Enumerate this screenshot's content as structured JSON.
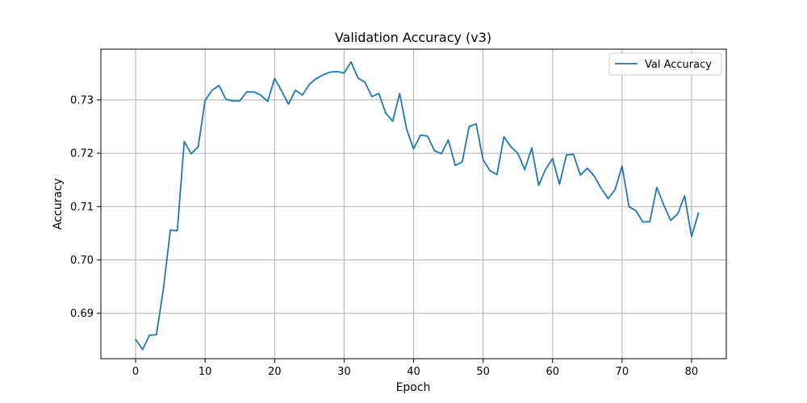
{
  "chart_data": {
    "type": "line",
    "title": "Validation Accuracy (v3)",
    "xlabel": "Epoch",
    "ylabel": "Accuracy",
    "xlim": [
      -5,
      85
    ],
    "ylim": [
      0.6815,
      0.7395
    ],
    "xticks": [
      0,
      10,
      20,
      30,
      40,
      50,
      60,
      70,
      80
    ],
    "xtick_labels": [
      "0",
      "10",
      "20",
      "30",
      "40",
      "50",
      "60",
      "70",
      "80"
    ],
    "yticks": [
      0.69,
      0.7,
      0.71,
      0.72,
      0.73
    ],
    "ytick_labels": [
      "0.69",
      "0.70",
      "0.71",
      "0.72",
      "0.73"
    ],
    "grid": true,
    "legend_position": "top-right",
    "series": [
      {
        "name": "Val Accuracy",
        "color": "#1f77b4",
        "x": [
          0,
          1,
          2,
          3,
          4,
          5,
          6,
          7,
          8,
          9,
          10,
          11,
          12,
          13,
          14,
          15,
          16,
          17,
          18,
          19,
          20,
          21,
          22,
          23,
          24,
          25,
          26,
          27,
          28,
          29,
          30,
          31,
          32,
          33,
          34,
          35,
          36,
          37,
          38,
          39,
          40,
          41,
          42,
          43,
          44,
          45,
          46,
          47,
          48,
          49,
          50,
          51,
          52,
          53,
          54,
          55,
          56,
          57,
          58,
          59,
          60,
          61,
          62,
          63,
          64,
          65,
          66,
          67,
          68,
          69,
          70,
          71,
          72,
          73,
          74,
          75,
          76,
          77,
          78,
          79,
          80,
          81
        ],
        "values": [
          0.6851,
          0.6832,
          0.6859,
          0.686,
          0.6946,
          0.7056,
          0.7055,
          0.7222,
          0.7199,
          0.7212,
          0.7299,
          0.7318,
          0.7327,
          0.7301,
          0.7298,
          0.7298,
          0.7315,
          0.7315,
          0.7309,
          0.7297,
          0.734,
          0.7317,
          0.7292,
          0.7318,
          0.7309,
          0.7329,
          0.734,
          0.7347,
          0.7352,
          0.7353,
          0.735,
          0.7371,
          0.7341,
          0.7333,
          0.7306,
          0.7312,
          0.7275,
          0.726,
          0.7312,
          0.7245,
          0.7208,
          0.7234,
          0.7232,
          0.7205,
          0.7199,
          0.7225,
          0.7177,
          0.7184,
          0.725,
          0.7255,
          0.7188,
          0.7167,
          0.716,
          0.7231,
          0.7212,
          0.72,
          0.7169,
          0.721,
          0.714,
          0.717,
          0.719,
          0.7142,
          0.7197,
          0.7198,
          0.7159,
          0.7172,
          0.7157,
          0.7134,
          0.7115,
          0.7132,
          0.7176,
          0.71,
          0.7092,
          0.7071,
          0.7072,
          0.7136,
          0.7103,
          0.7074,
          0.7086,
          0.712,
          0.7044,
          0.7088
        ]
      }
    ]
  }
}
